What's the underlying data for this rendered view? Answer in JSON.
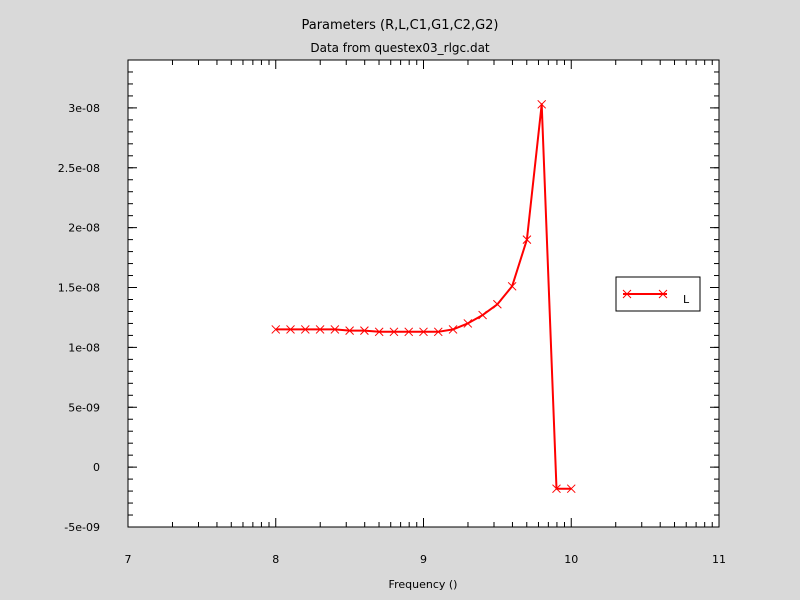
{
  "chart_data": {
    "type": "line",
    "title": "Parameters (R,L,C1,G1,C2,G2)",
    "subtitle": "Data from questex03_rlgc.dat",
    "xlabel": "Frequency ()",
    "ylabel": "",
    "xlim": [
      7,
      11
    ],
    "ylim": [
      -5e-09,
      3.4e-08
    ],
    "x_ticks": [
      7,
      8,
      9,
      10,
      11
    ],
    "x_tick_labels": [
      "7",
      "8",
      "9",
      "10",
      "11"
    ],
    "y_ticks": [
      -5e-09,
      0,
      5e-09,
      1e-08,
      1.5e-08,
      2e-08,
      2.5e-08,
      3e-08
    ],
    "y_tick_labels": [
      "-5e-09",
      "0",
      "5e-09",
      "1e-08",
      "1.5e-08",
      "2e-08",
      "2.5e-08",
      "3e-08"
    ],
    "grid": false,
    "legend_position": "right",
    "series": [
      {
        "name": "L",
        "color": "#ff0000",
        "marker": "x",
        "x": [
          8.0,
          8.1,
          8.2,
          8.3,
          8.4,
          8.5,
          8.6,
          8.7,
          8.8,
          8.9,
          9.0,
          9.1,
          9.2,
          9.3,
          9.4,
          9.5,
          9.6,
          9.7,
          9.8,
          9.9,
          10.0
        ],
        "values": [
          1.15e-08,
          1.15e-08,
          1.15e-08,
          1.15e-08,
          1.15e-08,
          1.14e-08,
          1.14e-08,
          1.13e-08,
          1.13e-08,
          1.13e-08,
          1.13e-08,
          1.13e-08,
          1.15e-08,
          1.2e-08,
          1.27e-08,
          1.36e-08,
          1.51e-08,
          1.9e-08,
          3.03e-08,
          -1.8e-09,
          -1.8e-09
        ]
      }
    ]
  }
}
